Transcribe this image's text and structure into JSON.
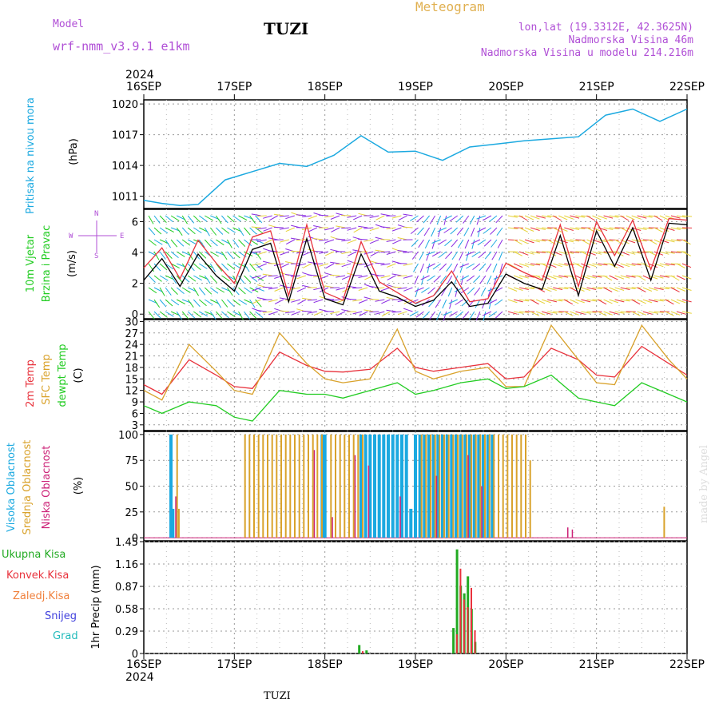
{
  "header": {
    "model_label": "Model",
    "model_name": "wrf-nmm_v3.9.1 e1km",
    "station": "TUZI",
    "title": "Meteogram",
    "lonlat": "lon,lat (19.3312E, 42.3625N)",
    "altitude": "Nadmorska Visina 46m",
    "model_altitude": "Nadmorska Visina u modelu 214.216m",
    "year_top": "2024",
    "year_bottom": "2024",
    "footer_station": "TUZI",
    "watermark": "made by Angel"
  },
  "colors": {
    "pressure": "#1ba9e0",
    "wind_speed": "#000000",
    "wind_gust": "#e8323c",
    "t2m": "#e8323c",
    "tsfc": "#d9a22b",
    "dewpt": "#22cc22",
    "cloud_high": "#1ba9e0",
    "cloud_mid": "#d9a22b",
    "cloud_low": "#cc2277",
    "precip_total": "#22aa22",
    "precip_conv": "#e8323c",
    "precip_frozen": "#f0803c",
    "snow": "#4040dd",
    "grad": "#22bbbb",
    "header_purple": "#b04fd6",
    "header_gold": "#e0b050"
  },
  "chart_data": [
    {
      "type": "line",
      "id": "pressure",
      "ylabel_left": "Pritisak na nivou mora",
      "ylabel_unit": "(hPa)",
      "xlabels": [
        "16SEP",
        "17SEP",
        "18SEP",
        "19SEP",
        "20SEP",
        "21SEP",
        "22SEP"
      ],
      "ylim": [
        1009.8,
        1020.4
      ],
      "yticks": [
        "1011",
        "1014",
        "1017",
        "1020"
      ],
      "grid": true,
      "series": [
        {
          "x": [
            0,
            0.2,
            0.4,
            0.6,
            0.9,
            1.2,
            1.5,
            1.8,
            2.1,
            2.4,
            2.7,
            3.0,
            3.3,
            3.6,
            3.9,
            4.2,
            4.5,
            4.8,
            5.1,
            5.4,
            5.7,
            6.0
          ],
          "y": [
            1010.6,
            1010.3,
            1010.1,
            1010.2,
            1012.6,
            1013.4,
            1014.2,
            1013.9,
            1015.0,
            1016.9,
            1015.3,
            1015.4,
            1014.5,
            1015.8,
            1016.1,
            1016.4,
            1016.6,
            1016.8,
            1018.9,
            1019.5,
            1018.3,
            1019.5
          ]
        }
      ]
    },
    {
      "type": "line",
      "id": "wind",
      "ylabel_left_1": "10m Vjetar",
      "ylabel_left_2": "Brzina i Pravac",
      "ylabel_unit": "(m/s)",
      "compass": {
        "n": "N",
        "s": "S",
        "w": "W",
        "e": "E"
      },
      "ylim": [
        -0.3,
        6.8
      ],
      "yticks": [
        "0",
        "2",
        "4",
        "6"
      ],
      "grid": true,
      "series": [
        {
          "x": [
            0,
            0.2,
            0.4,
            0.6,
            0.8,
            1.0,
            1.2,
            1.4,
            1.6,
            1.8,
            2.0,
            2.2,
            2.4,
            2.6,
            2.8,
            3.0,
            3.2,
            3.4,
            3.6,
            3.8,
            4.0,
            4.2,
            4.4,
            4.6,
            4.8,
            5.0,
            5.2,
            5.4,
            5.6,
            5.8,
            6.0
          ],
          "y": [
            2.2,
            3.6,
            1.8,
            3.9,
            2.5,
            1.5,
            4.2,
            4.6,
            0.8,
            4.9,
            1.0,
            0.6,
            3.9,
            1.5,
            1.1,
            0.5,
            0.9,
            2.1,
            0.5,
            0.7,
            2.6,
            2.0,
            1.6,
            5.1,
            1.2,
            5.4,
            3.1,
            5.6,
            2.2,
            5.9,
            5.8
          ]
        },
        {
          "x": [
            0,
            0.2,
            0.4,
            0.6,
            0.8,
            1.0,
            1.2,
            1.4,
            1.6,
            1.8,
            2.0,
            2.2,
            2.4,
            2.6,
            2.8,
            3.0,
            3.2,
            3.4,
            3.6,
            3.8,
            4.0,
            4.2,
            4.4,
            4.6,
            4.8,
            5.0,
            5.2,
            5.4,
            5.6,
            5.8,
            6.0
          ],
          "y": [
            3.0,
            4.3,
            2.3,
            4.8,
            3.3,
            2.0,
            5.0,
            5.4,
            1.2,
            5.8,
            1.4,
            0.9,
            4.7,
            2.1,
            1.4,
            0.7,
            1.2,
            2.8,
            0.8,
            1.0,
            3.3,
            2.7,
            2.2,
            5.8,
            1.8,
            6.0,
            3.8,
            6.1,
            2.9,
            6.2,
            6.1
          ]
        }
      ]
    },
    {
      "type": "line",
      "id": "temperature",
      "ylabel_1": "2m Temp",
      "ylabel_2": "SFC Temp",
      "ylabel_3": "dewpt Temp",
      "ylabel_unit": "(C)",
      "ylim": [
        1.5,
        30.5
      ],
      "yticks": [
        "3",
        "6",
        "9",
        "12",
        "15",
        "18",
        "21",
        "24",
        "27",
        "30"
      ],
      "grid": true,
      "series": [
        {
          "name": "2m Temp",
          "x": [
            0,
            0.2,
            0.5,
            0.8,
            1.0,
            1.2,
            1.5,
            1.8,
            2.0,
            2.2,
            2.5,
            2.8,
            3.0,
            3.2,
            3.5,
            3.8,
            4.0,
            4.2,
            4.5,
            4.8,
            5.0,
            5.2,
            5.5,
            5.8,
            6.0
          ],
          "y": [
            13.5,
            11.0,
            20.0,
            16.0,
            13.0,
            12.5,
            22.0,
            18.5,
            17.0,
            16.8,
            17.5,
            23.0,
            18.0,
            17.0,
            18.0,
            19.0,
            15.0,
            15.5,
            23.0,
            20.0,
            16.0,
            15.5,
            23.5,
            19.0,
            16.0
          ]
        },
        {
          "name": "SFC Temp",
          "x": [
            0,
            0.2,
            0.5,
            0.8,
            1.0,
            1.2,
            1.5,
            1.8,
            2.0,
            2.2,
            2.5,
            2.8,
            3.0,
            3.2,
            3.5,
            3.8,
            4.0,
            4.2,
            4.5,
            4.8,
            5.0,
            5.2,
            5.5,
            5.8,
            6.0
          ],
          "y": [
            12.0,
            9.5,
            24.0,
            17.0,
            12.0,
            11.0,
            27.0,
            19.0,
            15.0,
            14.0,
            15.0,
            28.0,
            17.0,
            15.0,
            17.0,
            18.0,
            13.0,
            13.0,
            29.0,
            20.0,
            14.0,
            13.5,
            29.0,
            20.0,
            15.0
          ]
        },
        {
          "name": "dewpt Temp",
          "x": [
            0,
            0.2,
            0.5,
            0.8,
            1.0,
            1.2,
            1.5,
            1.8,
            2.0,
            2.2,
            2.5,
            2.8,
            3.0,
            3.2,
            3.5,
            3.8,
            4.0,
            4.2,
            4.5,
            4.8,
            5.0,
            5.2,
            5.5,
            5.8,
            6.0
          ],
          "y": [
            8.0,
            6.0,
            9.0,
            8.0,
            5.0,
            4.0,
            12.0,
            11.0,
            11.0,
            10.0,
            12.0,
            14.0,
            11.0,
            12.0,
            14.0,
            15.0,
            12.5,
            13.0,
            16.0,
            10.0,
            9.0,
            8.0,
            14.0,
            11.0,
            9.0
          ]
        }
      ]
    },
    {
      "type": "bar",
      "id": "cloud",
      "ylabel_1": "Visoka Oblacnost",
      "ylabel_2": "Srednja Oblacnost",
      "ylabel_3": "Niska Oblacnost",
      "ylabel_unit": "(%)",
      "ylim": [
        -3,
        103
      ],
      "yticks": [
        "0",
        "25",
        "50",
        "75",
        "100"
      ],
      "grid": true,
      "high": [
        [
          0.3,
          100
        ],
        [
          0.32,
          28
        ],
        [
          1.97,
          100
        ],
        [
          2.0,
          100
        ],
        [
          2.4,
          100
        ],
        [
          2.45,
          100
        ],
        [
          2.5,
          100
        ],
        [
          2.55,
          100
        ],
        [
          2.6,
          100
        ],
        [
          2.65,
          100
        ],
        [
          2.7,
          100
        ],
        [
          2.75,
          100
        ],
        [
          2.8,
          100
        ],
        [
          2.85,
          100
        ],
        [
          2.9,
          100
        ],
        [
          2.95,
          28
        ],
        [
          3.0,
          100
        ],
        [
          3.05,
          100
        ],
        [
          3.1,
          100
        ],
        [
          3.15,
          100
        ],
        [
          3.2,
          100
        ],
        [
          3.25,
          100
        ],
        [
          3.3,
          100
        ],
        [
          3.35,
          100
        ],
        [
          3.4,
          100
        ],
        [
          3.45,
          100
        ],
        [
          3.5,
          100
        ],
        [
          3.55,
          100
        ],
        [
          3.6,
          100
        ],
        [
          3.65,
          100
        ],
        [
          3.7,
          100
        ],
        [
          3.75,
          100
        ],
        [
          3.8,
          100
        ],
        [
          3.85,
          100
        ]
      ],
      "mid": [
        [
          0.35,
          100
        ],
        [
          0.37,
          28
        ],
        [
          1.1,
          100
        ],
        [
          1.15,
          100
        ],
        [
          1.2,
          100
        ],
        [
          1.25,
          100
        ],
        [
          1.3,
          100
        ],
        [
          1.35,
          100
        ],
        [
          1.4,
          100
        ],
        [
          1.45,
          100
        ],
        [
          1.5,
          100
        ],
        [
          1.55,
          100
        ],
        [
          1.6,
          100
        ],
        [
          1.65,
          100
        ],
        [
          1.7,
          100
        ],
        [
          1.75,
          100
        ],
        [
          1.8,
          100
        ],
        [
          1.85,
          100
        ],
        [
          1.9,
          100
        ],
        [
          1.95,
          100
        ],
        [
          2.05,
          100
        ],
        [
          2.1,
          100
        ],
        [
          2.15,
          100
        ],
        [
          2.2,
          100
        ],
        [
          2.25,
          100
        ],
        [
          2.3,
          100
        ],
        [
          2.35,
          100
        ],
        [
          2.4,
          100
        ],
        [
          3.05,
          100
        ],
        [
          3.1,
          100
        ],
        [
          3.15,
          100
        ],
        [
          3.2,
          100
        ],
        [
          3.25,
          100
        ],
        [
          3.3,
          100
        ],
        [
          3.35,
          100
        ],
        [
          3.4,
          100
        ],
        [
          3.45,
          100
        ],
        [
          3.5,
          100
        ],
        [
          3.55,
          100
        ],
        [
          3.6,
          100
        ],
        [
          3.65,
          100
        ],
        [
          3.7,
          100
        ],
        [
          3.75,
          100
        ],
        [
          3.8,
          100
        ],
        [
          3.85,
          100
        ],
        [
          3.9,
          100
        ],
        [
          3.95,
          100
        ],
        [
          4.0,
          100
        ],
        [
          4.05,
          100
        ],
        [
          4.1,
          100
        ],
        [
          4.15,
          100
        ],
        [
          4.2,
          100
        ],
        [
          4.25,
          75
        ],
        [
          5.73,
          30
        ]
      ],
      "low": [
        [
          0.32,
          40
        ],
        [
          1.85,
          85
        ],
        [
          2.05,
          20
        ],
        [
          2.3,
          80
        ],
        [
          2.45,
          70
        ],
        [
          2.8,
          40
        ],
        [
          3.2,
          60
        ],
        [
          3.55,
          80
        ],
        [
          3.7,
          50
        ],
        [
          4.65,
          10
        ],
        [
          4.7,
          8
        ]
      ]
    },
    {
      "type": "bar",
      "id": "precip",
      "legend_1": "Ukupna Kisa",
      "legend_2": "Konvek.Kisa",
      "legend_3": "Zaledj.Kisa",
      "legend_4": "Snijeg",
      "legend_5": "Grad",
      "ylabel_unit": "1hr Precip (mm)",
      "ylim": [
        0,
        1.45
      ],
      "yticks": [
        "0",
        "0.29",
        "0.58",
        "0.87",
        "1.16",
        "1.45"
      ],
      "grid": true,
      "total": [
        [
          2.38,
          0.11
        ],
        [
          2.46,
          0.04
        ],
        [
          3.42,
          0.33
        ],
        [
          3.46,
          1.35
        ],
        [
          3.5,
          0.88
        ],
        [
          3.54,
          0.78
        ],
        [
          3.58,
          1.0
        ],
        [
          3.62,
          0.58
        ],
        [
          3.66,
          0.15
        ]
      ],
      "conv": [
        [
          2.4,
          0.03
        ],
        [
          3.44,
          0.25
        ],
        [
          3.48,
          1.1
        ],
        [
          3.52,
          0.7
        ],
        [
          3.56,
          0.6
        ],
        [
          3.6,
          0.85
        ],
        [
          3.64,
          0.3
        ]
      ]
    }
  ]
}
